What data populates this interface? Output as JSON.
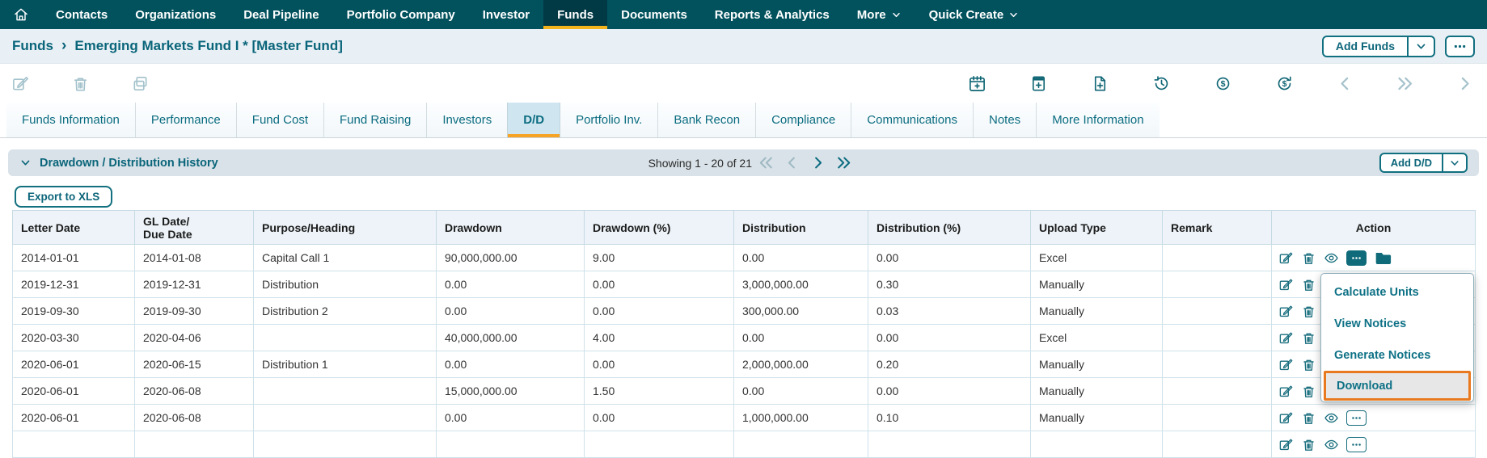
{
  "nav": {
    "items": [
      {
        "label": "Contacts",
        "active": false,
        "dropdown": false
      },
      {
        "label": "Organizations",
        "active": false,
        "dropdown": false
      },
      {
        "label": "Deal Pipeline",
        "active": false,
        "dropdown": false
      },
      {
        "label": "Portfolio Company",
        "active": false,
        "dropdown": false
      },
      {
        "label": "Investor",
        "active": false,
        "dropdown": false
      },
      {
        "label": "Funds",
        "active": true,
        "dropdown": false
      },
      {
        "label": "Documents",
        "active": false,
        "dropdown": false
      },
      {
        "label": "Reports & Analytics",
        "active": false,
        "dropdown": false
      },
      {
        "label": "More",
        "active": false,
        "dropdown": true
      },
      {
        "label": "Quick Create",
        "active": false,
        "dropdown": true
      }
    ]
  },
  "breadcrumb": {
    "root": "Funds",
    "separator": "›",
    "current": "Emerging Markets Fund I * [Master Fund]",
    "add_funds_label": "Add Funds"
  },
  "toolbar": {
    "left_icons": [
      "edit-icon",
      "delete-icon",
      "duplicate-icon"
    ],
    "right_icons": [
      {
        "name": "calendar-add-icon",
        "muted": false
      },
      {
        "name": "note-add-icon",
        "muted": false
      },
      {
        "name": "file-add-icon",
        "muted": false
      },
      {
        "name": "history-icon",
        "muted": false
      },
      {
        "name": "currency-refresh-icon",
        "muted": false
      },
      {
        "name": "currency-cycle-icon",
        "muted": false
      },
      {
        "name": "chevron-left-icon",
        "muted": true
      },
      {
        "name": "double-chevron-right-icon",
        "muted": true
      },
      {
        "name": "chevron-right-icon",
        "muted": true
      }
    ]
  },
  "tabs": {
    "active": "D/D",
    "items": [
      "Funds Information",
      "Performance",
      "Fund Cost",
      "Fund Raising",
      "Investors",
      "D/D",
      "Portfolio Inv.",
      "Bank Recon",
      "Compliance",
      "Communications",
      "Notes",
      "More Information"
    ]
  },
  "section": {
    "title": "Drawdown / Distribution History",
    "showing": "Showing 1 - 20 of 21",
    "add_button": "Add D/D",
    "export_button": "Export to XLS"
  },
  "table": {
    "columns": [
      "Letter Date",
      "GL Date/\nDue Date",
      "Purpose/Heading",
      "Drawdown",
      "Drawdown (%)",
      "Distribution",
      "Distribution (%)",
      "Upload Type",
      "Remark",
      "Action"
    ],
    "rows": [
      {
        "letter_date": "2014-01-01",
        "gl_date": "2014-01-08",
        "purpose": "Capital Call 1",
        "drawdown": "90,000,000.00",
        "drawdown_pct": "9.00",
        "distribution": "0.00",
        "distribution_pct": "0.00",
        "upload_type": "Excel",
        "remark": "",
        "actions": [
          "edit",
          "delete",
          "view",
          "more-filled",
          "folder"
        ]
      },
      {
        "letter_date": "2019-12-31",
        "gl_date": "2019-12-31",
        "purpose": "Distribution",
        "drawdown": "0.00",
        "drawdown_pct": "0.00",
        "distribution": "3,000,000.00",
        "distribution_pct": "0.30",
        "upload_type": "Manually",
        "remark": "",
        "actions": [
          "edit",
          "delete",
          "view",
          "more"
        ]
      },
      {
        "letter_date": "2019-09-30",
        "gl_date": "2019-09-30",
        "purpose": "Distribution 2",
        "drawdown": "0.00",
        "drawdown_pct": "0.00",
        "distribution": "300,000.00",
        "distribution_pct": "0.03",
        "upload_type": "Manually",
        "remark": "",
        "actions": [
          "edit",
          "delete",
          "view",
          "more"
        ]
      },
      {
        "letter_date": "2020-03-30",
        "gl_date": "2020-04-06",
        "purpose": "",
        "drawdown": "40,000,000.00",
        "drawdown_pct": "4.00",
        "distribution": "0.00",
        "distribution_pct": "0.00",
        "upload_type": "Excel",
        "remark": "",
        "actions": [
          "edit",
          "delete",
          "view",
          "more"
        ]
      },
      {
        "letter_date": "2020-06-01",
        "gl_date": "2020-06-15",
        "purpose": "Distribution 1",
        "drawdown": "0.00",
        "drawdown_pct": "0.00",
        "distribution": "2,000,000.00",
        "distribution_pct": "0.20",
        "upload_type": "Manually",
        "remark": "",
        "actions": [
          "edit",
          "delete",
          "view",
          "more"
        ]
      },
      {
        "letter_date": "2020-06-01",
        "gl_date": "2020-06-08",
        "purpose": "",
        "drawdown": "15,000,000.00",
        "drawdown_pct": "1.50",
        "distribution": "0.00",
        "distribution_pct": "0.00",
        "upload_type": "Manually",
        "remark": "",
        "actions": [
          "edit",
          "delete",
          "view",
          "more"
        ]
      },
      {
        "letter_date": "2020-06-01",
        "gl_date": "2020-06-08",
        "purpose": "",
        "drawdown": "0.00",
        "drawdown_pct": "0.00",
        "distribution": "1,000,000.00",
        "distribution_pct": "0.10",
        "upload_type": "Manually",
        "remark": "",
        "actions": [
          "edit",
          "delete",
          "view",
          "more"
        ]
      },
      {
        "letter_date": "",
        "gl_date": "",
        "purpose": "",
        "drawdown": "",
        "drawdown_pct": "",
        "distribution": "",
        "distribution_pct": "",
        "upload_type": "",
        "remark": "",
        "actions": [
          "edit",
          "delete",
          "view",
          "more"
        ]
      }
    ]
  },
  "context_menu": {
    "items": [
      "Calculate Units",
      "View Notices",
      "Generate Notices",
      "Download"
    ],
    "highlighted": "Download"
  },
  "colors": {
    "nav_bg": "#02525e",
    "nav_active_bg": "#013945",
    "nav_active_underline": "#f2b31c",
    "accent_teal": "#0b6c80",
    "tab_active_bg": "#cfe6f0",
    "tab_active_underline": "#f5a425",
    "section_bar_bg": "#d9e2e8",
    "table_header_bg": "#edf3f8",
    "table_border": "#cfe2ea",
    "menu_highlight_border": "#e8791e",
    "menu_highlight_bg": "#e7e7e7"
  }
}
